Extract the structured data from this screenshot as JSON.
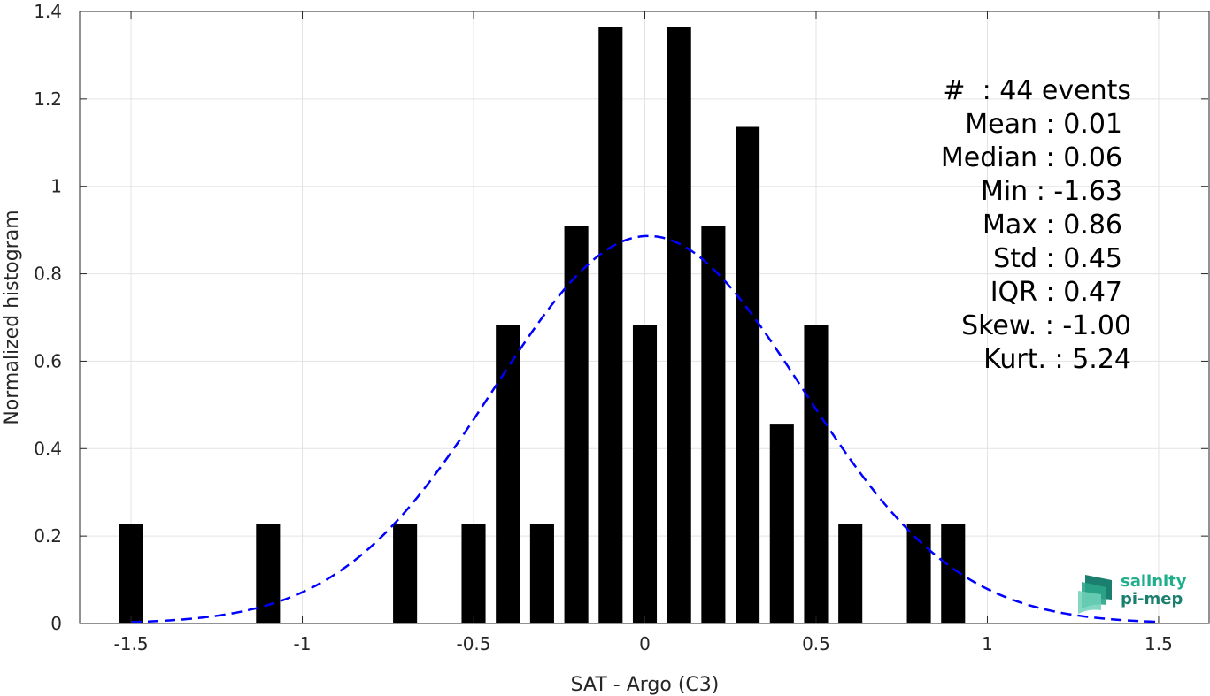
{
  "chart_data": {
    "type": "bar",
    "xlabel": "SAT - Argo (C3)",
    "ylabel": "Normalized histogram",
    "xlim": [
      -1.65,
      1.65
    ],
    "ylim": [
      0,
      1.4
    ],
    "grid": true,
    "bar_width": 0.07,
    "x": [
      -1.5,
      -1.1,
      -0.7,
      -0.5,
      -0.4,
      -0.3,
      -0.2,
      -0.1,
      0.0,
      0.1,
      0.2,
      0.3,
      0.4,
      0.5,
      0.6,
      0.8,
      0.9
    ],
    "values": [
      0.227,
      0.227,
      0.227,
      0.227,
      0.682,
      0.227,
      0.909,
      1.364,
      0.682,
      1.364,
      0.909,
      1.136,
      0.455,
      0.682,
      0.227,
      0.227,
      0.227
    ],
    "bar_color": "#000000",
    "fit": {
      "type": "normal",
      "mean": 0.01,
      "std": 0.45,
      "color": "#0000ff",
      "style": "dashed"
    },
    "xticks": [
      "-1.5",
      "-1",
      "-0.5",
      "0",
      "0.5",
      "1",
      "1.5"
    ],
    "xtick_values": [
      -1.5,
      -1,
      -0.5,
      0,
      0.5,
      1,
      1.5
    ],
    "yticks": [
      "0",
      "0.2",
      "0.4",
      "0.6",
      "0.8",
      "1",
      "1.2",
      "1.4"
    ],
    "ytick_values": [
      0,
      0.2,
      0.4,
      0.6,
      0.8,
      1.0,
      1.2,
      1.4
    ]
  },
  "stats": [
    {
      "label": "#  ",
      "value": ": 44 events"
    },
    {
      "label": "Mean ",
      "value": ": 0.01"
    },
    {
      "label": "Median ",
      "value": ": 0.06"
    },
    {
      "label": "Min ",
      "value": ": -1.63"
    },
    {
      "label": "Max ",
      "value": ": 0.86"
    },
    {
      "label": "Std ",
      "value": ": 0.45"
    },
    {
      "label": "IQR ",
      "value": ": 0.47"
    },
    {
      "label": "Skew. ",
      "value": ": -1.00"
    },
    {
      "label": "Kurt. ",
      "value": ": 5.24"
    }
  ],
  "logo": {
    "line1": "salinity",
    "line2": "pi-mep",
    "color1": "#1fae8c",
    "color2": "#1a7f6e"
  }
}
